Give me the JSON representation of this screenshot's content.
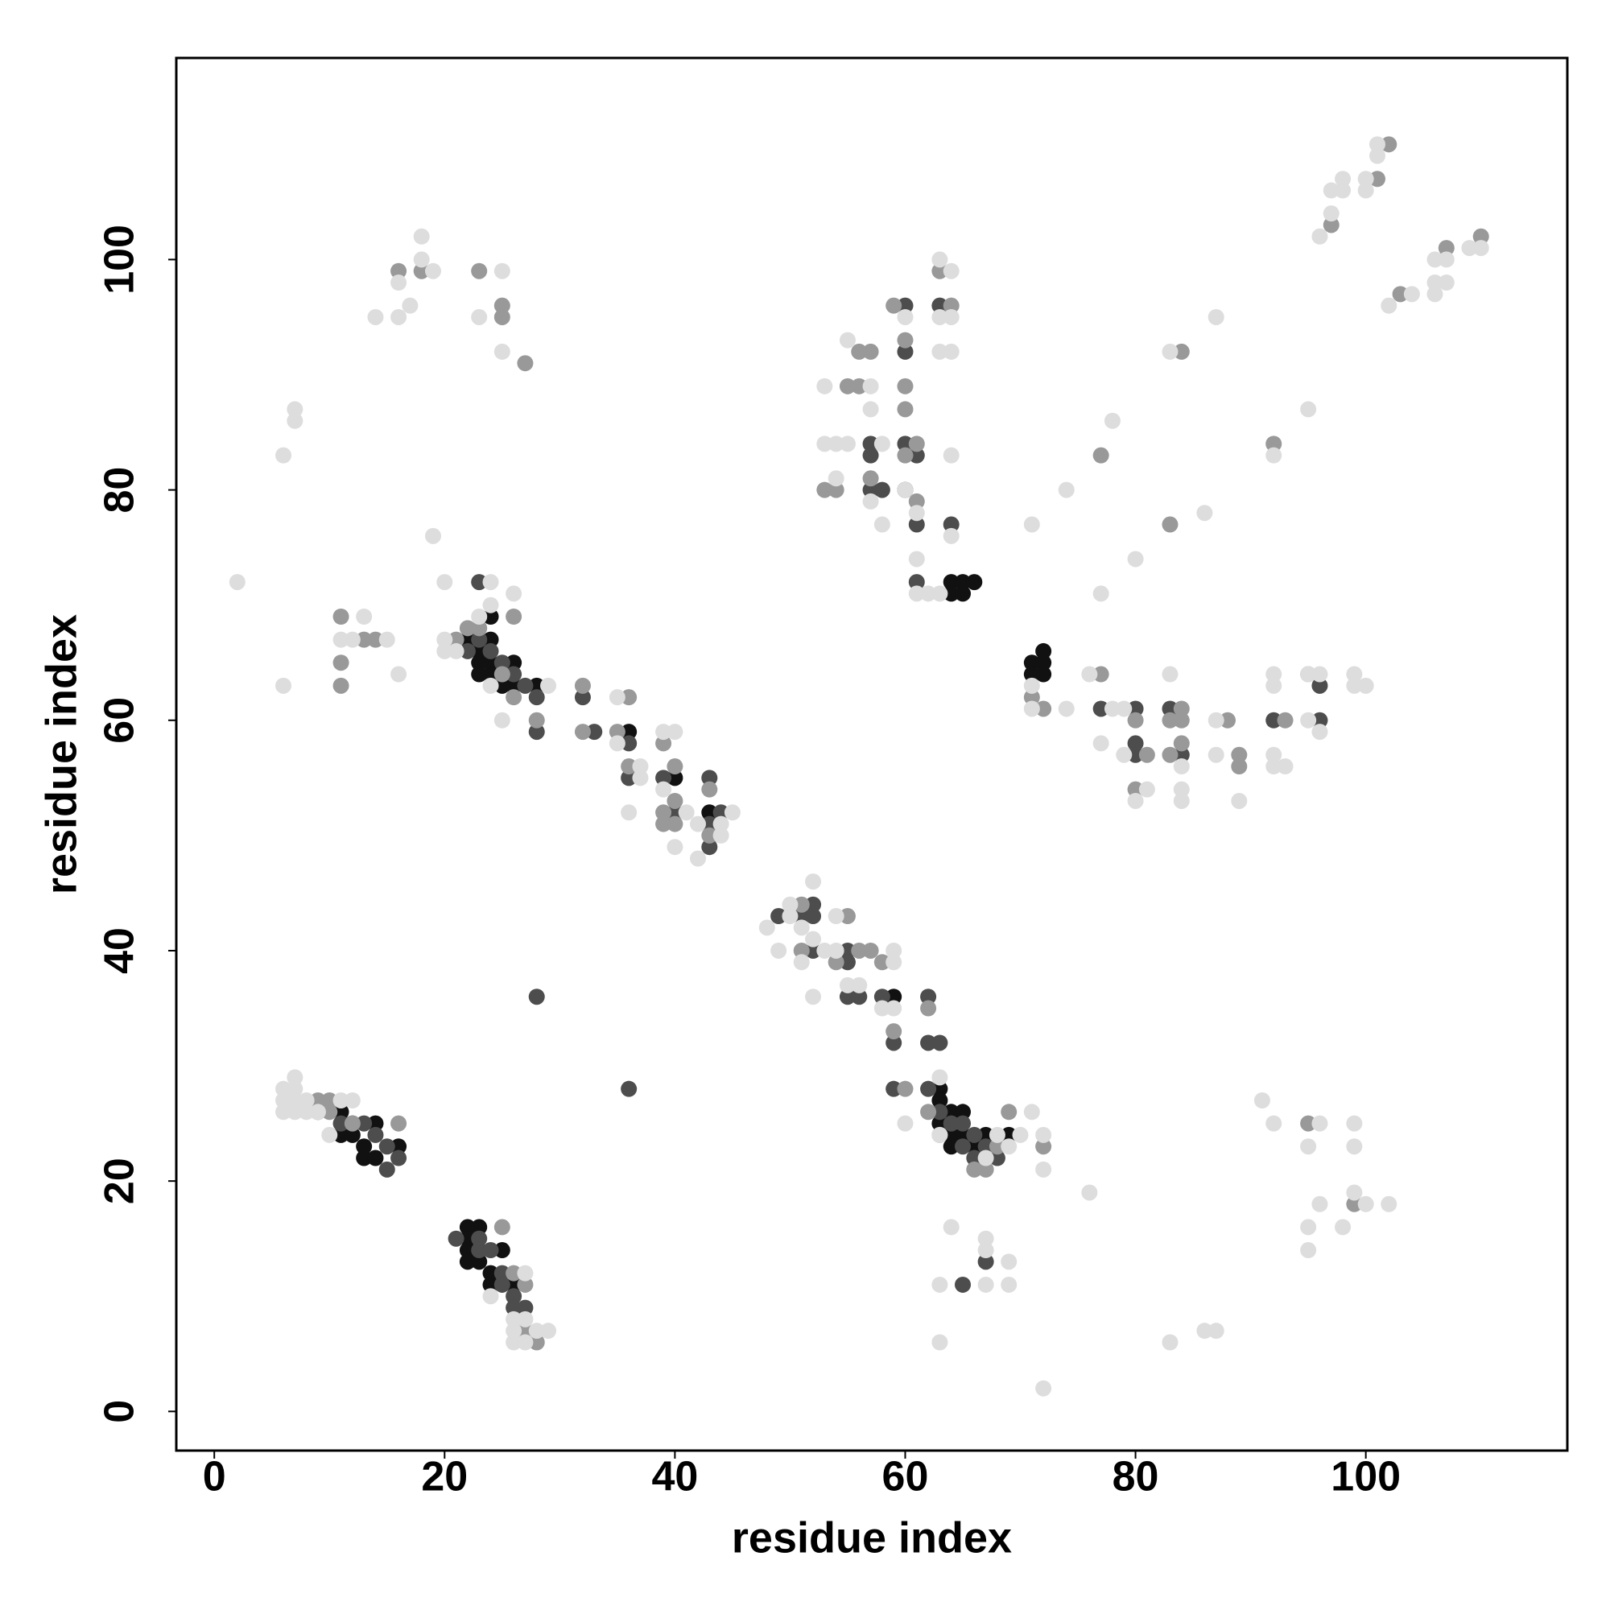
{
  "chart_data": {
    "type": "scatter",
    "xlabel": "residue index",
    "ylabel": "residue index",
    "xlim": [
      -3.3,
      117.5
    ],
    "ylim": [
      -3.4,
      117.5
    ],
    "xticks": [
      0,
      20,
      40,
      60,
      80,
      100
    ],
    "yticks": [
      0,
      20,
      40,
      60,
      80,
      100
    ],
    "series": [
      {
        "color": "#111111",
        "x": [
          11,
          11,
          12,
          13,
          13,
          14,
          14,
          16,
          12,
          22,
          23,
          22,
          22,
          22,
          23,
          24,
          24,
          25,
          26,
          22,
          23,
          23,
          23,
          24,
          24,
          24,
          24,
          25,
          26,
          26,
          28,
          36,
          40,
          43,
          60,
          64,
          65,
          66,
          64,
          65,
          59,
          63,
          63,
          63,
          64,
          64,
          64,
          65,
          65,
          66,
          67,
          69,
          71,
          72,
          72,
          72,
          71
        ],
        "y": [
          26,
          24,
          24,
          23,
          22,
          25,
          22,
          23,
          25,
          16,
          16,
          15,
          14,
          13,
          13,
          12,
          11,
          14,
          11,
          67,
          66,
          65,
          64,
          69,
          67,
          65,
          64,
          63,
          65,
          63,
          63,
          59,
          55,
          52,
          80,
          72,
          72,
          72,
          71,
          71,
          36,
          28,
          27,
          25,
          26,
          24,
          23,
          26,
          24,
          23,
          24,
          24,
          65,
          66,
          65,
          64,
          64
        ]
      },
      {
        "color": "#4d4d4d",
        "x": [
          9,
          11,
          13,
          14,
          15,
          16,
          15,
          21,
          23,
          23,
          24,
          25,
          25,
          26,
          26,
          27,
          23,
          23,
          22,
          25,
          26,
          27,
          28,
          28,
          24,
          28,
          36,
          32,
          33,
          36,
          36,
          39,
          43,
          40,
          43,
          43,
          44,
          49,
          51,
          52,
          52,
          52,
          55,
          55,
          55,
          56,
          58,
          59,
          59,
          62,
          62,
          63,
          62,
          63,
          64,
          65,
          66,
          67,
          65,
          66,
          68,
          67,
          65,
          57,
          57,
          57,
          58,
          60,
          60,
          60,
          61,
          61,
          63,
          64,
          61,
          77,
          80,
          80,
          80,
          83,
          84,
          92,
          96,
          96
        ],
        "y": [
          26,
          25,
          25,
          24,
          23,
          22,
          21,
          15,
          15,
          14,
          14,
          12,
          11,
          10,
          9,
          9,
          72,
          67,
          66,
          65,
          64,
          63,
          62,
          59,
          66,
          36,
          28,
          62,
          59,
          58,
          55,
          55,
          55,
          52,
          51,
          49,
          52,
          43,
          43,
          44,
          43,
          40,
          40,
          39,
          36,
          36,
          36,
          32,
          28,
          36,
          32,
          32,
          28,
          26,
          25,
          25,
          24,
          23,
          23,
          22,
          22,
          13,
          11,
          84,
          83,
          80,
          80,
          92,
          96,
          84,
          83,
          77,
          96,
          77,
          72,
          61,
          61,
          58,
          57,
          61,
          57,
          60,
          63,
          60
        ]
      },
      {
        "color": "#999999",
        "x": [
          9,
          10,
          10,
          16,
          12,
          25,
          26,
          27,
          28,
          27,
          21,
          22,
          26,
          26,
          25,
          28,
          23,
          11,
          11,
          13,
          14,
          11,
          16,
          18,
          23,
          25,
          25,
          27,
          32,
          32,
          35,
          36,
          36,
          40,
          40,
          39,
          39,
          40,
          43,
          43,
          39,
          51,
          51,
          55,
          56,
          57,
          54,
          58,
          59,
          60,
          62,
          62,
          63,
          66,
          67,
          68,
          69,
          72,
          55,
          56,
          57,
          56,
          57,
          59,
          60,
          60,
          60,
          60,
          61,
          61,
          63,
          64,
          53,
          54,
          71,
          72,
          77,
          80,
          80,
          81,
          83,
          83,
          84,
          84,
          84,
          88,
          89,
          89,
          93,
          95,
          77,
          83,
          84,
          92,
          95,
          99,
          97,
          101,
          102,
          103,
          107,
          110
        ],
        "y": [
          27,
          27,
          26,
          25,
          25,
          16,
          12,
          11,
          6,
          7,
          67,
          68,
          69,
          62,
          64,
          60,
          68,
          69,
          65,
          67,
          67,
          63,
          99,
          99,
          99,
          96,
          95,
          91,
          63,
          59,
          59,
          62,
          56,
          56,
          53,
          52,
          51,
          51,
          54,
          50,
          58,
          40,
          44,
          43,
          40,
          40,
          39,
          39,
          33,
          28,
          35,
          26,
          24,
          21,
          21,
          23,
          26,
          23,
          89,
          92,
          92,
          89,
          81,
          96,
          93,
          89,
          87,
          83,
          84,
          79,
          99,
          96,
          80,
          80,
          62,
          61,
          64,
          60,
          54,
          57,
          57,
          60,
          61,
          60,
          58,
          60,
          57,
          56,
          60,
          64,
          83,
          77,
          92,
          84,
          25,
          18,
          103,
          107,
          110,
          97,
          101,
          102
        ]
      },
      {
        "color": "#dddddd",
        "x": [
          6,
          6,
          6,
          7,
          7,
          7,
          7,
          8,
          8,
          9,
          10,
          11,
          12,
          24,
          26,
          26,
          26,
          27,
          27,
          27,
          28,
          29,
          20,
          20,
          20,
          21,
          24,
          24,
          23,
          24,
          25,
          26,
          29,
          11,
          12,
          13,
          15,
          16,
          6,
          2,
          6,
          7,
          7,
          19,
          14,
          16,
          16,
          17,
          18,
          18,
          19,
          23,
          25,
          25,
          35,
          35,
          37,
          37,
          40,
          39,
          39,
          40,
          41,
          42,
          42,
          44,
          44,
          45,
          36,
          48,
          49,
          50,
          50,
          51,
          51,
          52,
          52,
          52,
          53,
          54,
          54,
          56,
          55,
          58,
          59,
          59,
          59,
          60,
          63,
          63,
          67,
          68,
          69,
          70,
          71,
          72,
          72,
          63,
          63,
          64,
          67,
          67,
          67,
          69,
          69,
          72,
          76,
          83,
          86,
          87,
          91,
          92,
          96,
          95,
          95,
          95,
          96,
          98,
          99,
          99,
          99,
          100,
          102,
          53,
          53,
          54,
          54,
          55,
          55,
          57,
          57,
          57,
          58,
          58,
          60,
          60,
          61,
          61,
          61,
          62,
          63,
          63,
          63,
          64,
          64,
          64,
          64,
          64,
          63,
          71,
          71,
          74,
          76,
          77,
          78,
          79,
          79,
          80,
          81,
          83,
          84,
          84,
          84,
          87,
          87,
          89,
          92,
          92,
          92,
          92,
          93,
          95,
          95,
          96,
          96,
          99,
          99,
          100,
          71,
          74,
          77,
          78,
          80,
          83,
          86,
          87,
          92,
          95,
          96,
          97,
          97,
          98,
          98,
          100,
          100,
          101,
          101,
          102,
          104,
          106,
          106,
          106,
          107,
          107,
          109,
          110
        ],
        "y": [
          28,
          27,
          26,
          29,
          28,
          27,
          26,
          27,
          26,
          26,
          24,
          27,
          27,
          10,
          8,
          7,
          6,
          12,
          8,
          6,
          7,
          7,
          72,
          67,
          66,
          66,
          72,
          70,
          69,
          63,
          60,
          71,
          63,
          67,
          67,
          69,
          67,
          64,
          63,
          72,
          83,
          87,
          86,
          76,
          95,
          95,
          98,
          96,
          102,
          100,
          99,
          95,
          99,
          92,
          62,
          58,
          56,
          55,
          59,
          59,
          54,
          49,
          52,
          48,
          51,
          51,
          50,
          52,
          52,
          42,
          40,
          44,
          43,
          42,
          39,
          46,
          41,
          36,
          40,
          43,
          40,
          37,
          37,
          35,
          40,
          39,
          35,
          25,
          29,
          24,
          22,
          24,
          23,
          24,
          26,
          24,
          21,
          11,
          6,
          16,
          15,
          14,
          11,
          13,
          11,
          2,
          19,
          6,
          7,
          7,
          27,
          25,
          25,
          23,
          16,
          14,
          18,
          16,
          25,
          23,
          19,
          18,
          18,
          89,
          84,
          84,
          81,
          93,
          84,
          89,
          87,
          79,
          84,
          77,
          95,
          80,
          78,
          74,
          71,
          71,
          100,
          95,
          92,
          99,
          95,
          92,
          83,
          76,
          71,
          63,
          61,
          61,
          64,
          58,
          61,
          61,
          57,
          53,
          54,
          64,
          56,
          54,
          53,
          60,
          57,
          53,
          64,
          63,
          57,
          56,
          56,
          64,
          60,
          64,
          59,
          64,
          63,
          63,
          77,
          80,
          71,
          86,
          74,
          92,
          78,
          95,
          83,
          87,
          102,
          104,
          106,
          106,
          107,
          106,
          107,
          109,
          110,
          96,
          97,
          97,
          98,
          100,
          100,
          98,
          101,
          101
        ]
      }
    ]
  }
}
